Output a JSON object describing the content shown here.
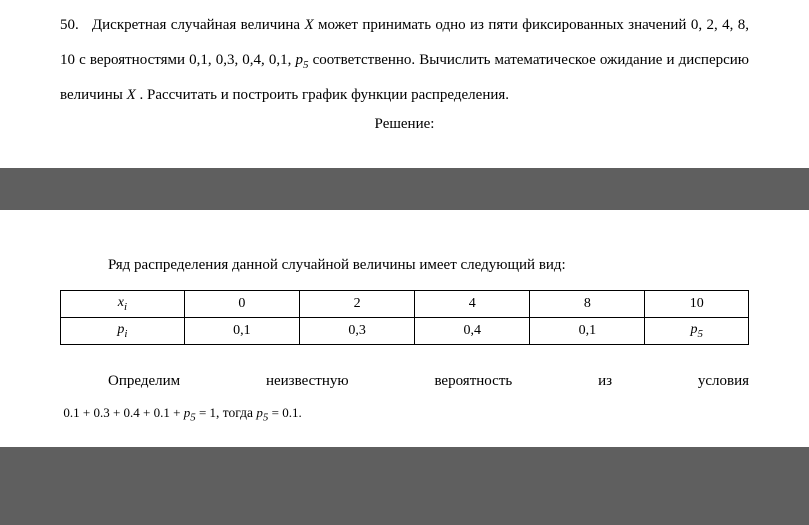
{
  "top": {
    "problemNumber": "50.",
    "text1": "Дискретная случайная величина ",
    "varX1": "X",
    "text2": " может принимать одно из пяти фиксированных значений 0, 2, 4, 8, 10 с вероятностями 0,1, 0,3, 0,4, 0,1, ",
    "p5": "p",
    "p5sub": "5",
    "text3": " соответственно. Вычислить математическое ожидание и дисперсию величины ",
    "varX2": "X",
    "text4": " . Рассчитать и построить график функции распределения.",
    "solutionLabel": "Решение:"
  },
  "bottom": {
    "distText": "Ряд распределения данной случайной величины имеет следующий вид:",
    "table": {
      "row1": {
        "h": "x",
        "hsub": "i",
        "c1": "0",
        "c2": "2",
        "c3": "4",
        "c4": "8",
        "c5": "10"
      },
      "row2": {
        "h": "p",
        "hsub": "i",
        "c1": "0,1",
        "c2": "0,3",
        "c3": "0,4",
        "c4": "0,1",
        "c5p": "p",
        "c5sub": "5"
      }
    },
    "condLine": {
      "w1": "Определим",
      "w2": "неизвестную",
      "w3": "вероятность",
      "w4": "из",
      "w5": "условия"
    },
    "formula": {
      "lhs": "0.1 + 0.3 + 0.4 + 0.1 + ",
      "p": "p",
      "psub": "5",
      "eq1": " = 1",
      "comma": ", тогда ",
      "p2": "p",
      "p2sub": "5",
      "eq2": " = 0.1."
    }
  }
}
